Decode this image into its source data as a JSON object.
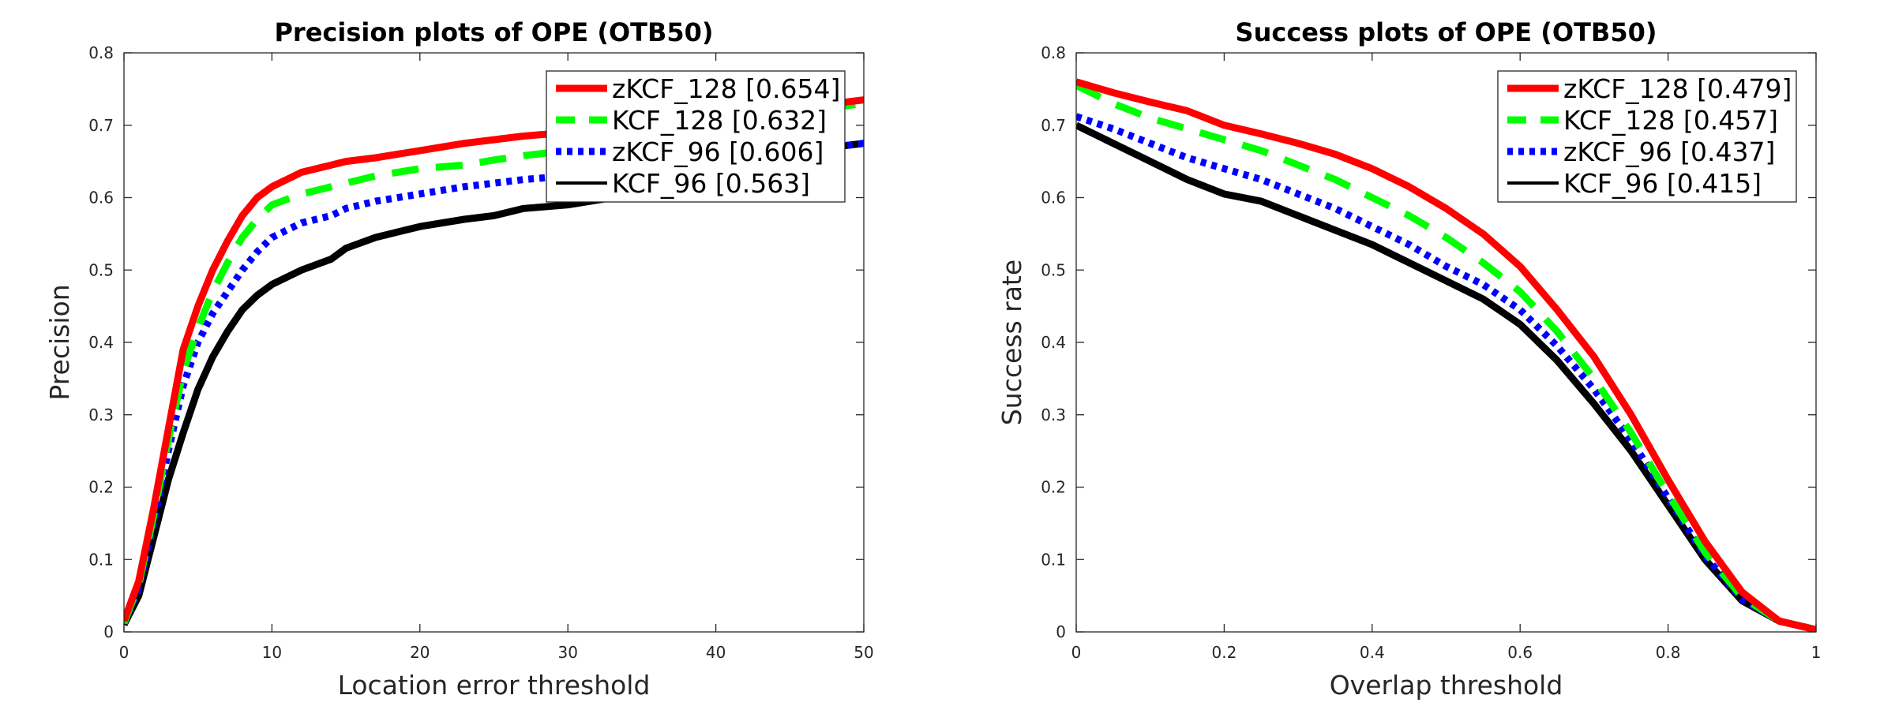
{
  "chart_data": [
    {
      "type": "line",
      "title": "Precision plots of OPE (OTB50)",
      "xlabel": "Location error threshold",
      "ylabel": "Precision",
      "xlim": [
        0,
        50
      ],
      "ylim": [
        0,
        0.8
      ],
      "xticks": [
        0,
        10,
        20,
        30,
        40,
        50
      ],
      "yticks": [
        0,
        0.1,
        0.2,
        0.3,
        0.4,
        0.5,
        0.6,
        0.7,
        0.8
      ],
      "xtick_labels": [
        "0",
        "10",
        "20",
        "30",
        "40",
        "50"
      ],
      "ytick_labels": [
        "0",
        "0.1",
        "0.2",
        "0.3",
        "0.4",
        "0.5",
        "0.6",
        "0.7",
        "0.8"
      ],
      "legend_position": "top-right",
      "grid": false,
      "x": [
        0,
        1,
        2,
        3,
        4,
        5,
        6,
        7,
        8,
        9,
        10,
        12,
        14,
        15,
        17,
        20,
        23,
        25,
        27,
        30,
        33,
        35,
        38,
        40,
        43,
        45,
        48,
        50
      ],
      "series": [
        {
          "name": "zKCF_128 [0.654]",
          "color": "#ff0000",
          "dash": "solid",
          "width": 9,
          "values": [
            0.015,
            0.07,
            0.17,
            0.28,
            0.39,
            0.45,
            0.5,
            0.54,
            0.575,
            0.6,
            0.615,
            0.635,
            0.645,
            0.65,
            0.655,
            0.665,
            0.675,
            0.68,
            0.685,
            0.69,
            0.695,
            0.7,
            0.705,
            0.71,
            0.715,
            0.72,
            0.73,
            0.735
          ]
        },
        {
          "name": "KCF_128 [0.632]",
          "color": "#00ff00",
          "dash": "dashed",
          "width": 9,
          "values": [
            0.012,
            0.065,
            0.16,
            0.265,
            0.36,
            0.42,
            0.47,
            0.51,
            0.545,
            0.57,
            0.59,
            0.605,
            0.615,
            0.62,
            0.63,
            0.64,
            0.645,
            0.652,
            0.658,
            0.665,
            0.67,
            0.68,
            0.69,
            0.7,
            0.71,
            0.715,
            0.725,
            0.73
          ]
        },
        {
          "name": "zKCF_96 [0.606]",
          "color": "#0000ff",
          "dash": "dotted",
          "width": 9,
          "values": [
            0.012,
            0.06,
            0.15,
            0.25,
            0.34,
            0.4,
            0.44,
            0.47,
            0.5,
            0.525,
            0.545,
            0.565,
            0.575,
            0.585,
            0.595,
            0.605,
            0.615,
            0.62,
            0.625,
            0.63,
            0.635,
            0.64,
            0.645,
            0.65,
            0.655,
            0.66,
            0.67,
            0.675
          ]
        },
        {
          "name": "KCF_96 [0.563]",
          "color": "#000000",
          "dash": "solid",
          "width": 9,
          "values": [
            0.01,
            0.05,
            0.13,
            0.21,
            0.275,
            0.335,
            0.38,
            0.415,
            0.445,
            0.465,
            0.48,
            0.5,
            0.515,
            0.53,
            0.545,
            0.56,
            0.57,
            0.575,
            0.585,
            0.59,
            0.6,
            0.61,
            0.625,
            0.635,
            0.65,
            0.66,
            0.67,
            0.675
          ]
        }
      ]
    },
    {
      "type": "line",
      "title": "Success plots of OPE (OTB50)",
      "xlabel": "Overlap threshold",
      "ylabel": "Success rate",
      "xlim": [
        0,
        1
      ],
      "ylim": [
        0,
        0.8
      ],
      "xticks": [
        0,
        0.2,
        0.4,
        0.6,
        0.8,
        1
      ],
      "yticks": [
        0,
        0.1,
        0.2,
        0.3,
        0.4,
        0.5,
        0.6,
        0.7,
        0.8
      ],
      "xtick_labels": [
        "0",
        "0.2",
        "0.4",
        "0.6",
        "0.8",
        "1"
      ],
      "ytick_labels": [
        "0",
        "0.1",
        "0.2",
        "0.3",
        "0.4",
        "0.5",
        "0.6",
        "0.7",
        "0.8"
      ],
      "legend_position": "top-right",
      "grid": false,
      "x": [
        0,
        0.05,
        0.1,
        0.15,
        0.2,
        0.25,
        0.3,
        0.35,
        0.4,
        0.45,
        0.5,
        0.55,
        0.6,
        0.65,
        0.7,
        0.75,
        0.8,
        0.85,
        0.9,
        0.95,
        1
      ],
      "series": [
        {
          "name": "zKCF_128 [0.479]",
          "color": "#ff0000",
          "dash": "solid",
          "width": 9,
          "values": [
            0.76,
            0.745,
            0.732,
            0.72,
            0.7,
            0.688,
            0.675,
            0.66,
            0.64,
            0.615,
            0.585,
            0.55,
            0.505,
            0.445,
            0.38,
            0.3,
            0.21,
            0.125,
            0.055,
            0.015,
            0.003
          ]
        },
        {
          "name": "KCF_128 [0.457]",
          "color": "#00ff00",
          "dash": "dashed",
          "width": 9,
          "values": [
            0.755,
            0.73,
            0.71,
            0.695,
            0.68,
            0.665,
            0.645,
            0.625,
            0.6,
            0.575,
            0.545,
            0.51,
            0.47,
            0.415,
            0.35,
            0.275,
            0.19,
            0.11,
            0.048,
            0.015,
            0.003
          ]
        },
        {
          "name": "zKCF_96 [0.437]",
          "color": "#0000ff",
          "dash": "dotted",
          "width": 9,
          "values": [
            0.712,
            0.695,
            0.675,
            0.655,
            0.64,
            0.625,
            0.605,
            0.585,
            0.56,
            0.535,
            0.505,
            0.48,
            0.445,
            0.395,
            0.335,
            0.265,
            0.185,
            0.105,
            0.045,
            0.015,
            0.003
          ]
        },
        {
          "name": "KCF_96 [0.415]",
          "color": "#000000",
          "dash": "solid",
          "width": 9,
          "values": [
            0.7,
            0.675,
            0.65,
            0.625,
            0.605,
            0.595,
            0.575,
            0.555,
            0.535,
            0.51,
            0.485,
            0.46,
            0.425,
            0.375,
            0.315,
            0.25,
            0.175,
            0.1,
            0.043,
            0.015,
            0.003
          ]
        }
      ]
    }
  ]
}
